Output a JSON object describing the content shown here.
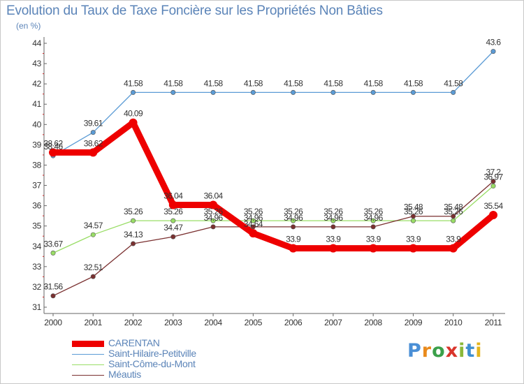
{
  "header": {
    "title": "Evolution du Taux de Taxe Foncière sur les Propriétés Non Bâties",
    "unit": "(en %)"
  },
  "chart_data": {
    "type": "line",
    "title": "Evolution du Taux de Taxe Foncière sur les Propriétés Non Bâties",
    "ylabel": "(en %)",
    "xlabel": "",
    "ylim": [
      31,
      44
    ],
    "grid": false,
    "legend": "bottom-left",
    "x": [
      "2000",
      "2001",
      "2002",
      "2003",
      "2004",
      "2005",
      "2006",
      "2007",
      "2008",
      "2009",
      "2010",
      "2011"
    ],
    "yticks": [
      "31",
      "32",
      "33",
      "34",
      "35",
      "36",
      "37",
      "38",
      "39",
      "40",
      "41",
      "42",
      "43",
      "44"
    ],
    "series": [
      {
        "name": "CARENTAN",
        "color": "#ee0000",
        "values": [
          38.62,
          38.62,
          40.09,
          36.04,
          36.04,
          34.64,
          33.9,
          33.9,
          33.9,
          33.9,
          33.9,
          35.54
        ],
        "labels": [
          "38.62",
          "38.62",
          "40.09",
          "36.04",
          "36.04",
          "34.64",
          "33.9",
          "33.9",
          "33.9",
          "33.9",
          "33.9",
          "35.54"
        ]
      },
      {
        "name": "Saint-Hilaire-Petitville",
        "color": "#5b9bd5",
        "values": [
          38.46,
          39.61,
          41.58,
          41.58,
          41.58,
          41.58,
          41.58,
          41.58,
          41.58,
          41.58,
          41.58,
          43.6
        ],
        "labels": [
          "38.46",
          "39.61",
          "41.58",
          "41.58",
          "41.58",
          "41.58",
          "41.58",
          "41.58",
          "41.58",
          "41.58",
          "41.58",
          "43.6"
        ]
      },
      {
        "name": "Saint-Côme-du-Mont",
        "color": "#99dd66",
        "values": [
          33.67,
          34.57,
          35.26,
          35.26,
          35.26,
          35.26,
          35.26,
          35.26,
          35.26,
          35.26,
          35.26,
          36.97
        ],
        "labels": [
          "33.67",
          "34.57",
          "35.26",
          "35.26",
          "35.26",
          "35.26",
          "35.26",
          "35.26",
          "35.26",
          "35.26",
          "35.26",
          "36.97"
        ]
      },
      {
        "name": "Méautis",
        "color": "#7a3030",
        "values": [
          31.56,
          32.51,
          34.13,
          34.47,
          34.96,
          34.96,
          34.96,
          34.96,
          34.96,
          35.48,
          35.48,
          37.2
        ],
        "labels": [
          "31.56",
          "32.51",
          "34.13",
          "34.47",
          "34.96",
          "34.96",
          "34.96",
          "34.96",
          "34.96",
          "35.48",
          "35.48",
          "37.2"
        ]
      }
    ]
  },
  "legend": {
    "items": [
      "CARENTAN",
      "Saint-Hilaire-Petitville",
      "Saint-Côme-du-Mont",
      "Méautis"
    ]
  },
  "logo": {
    "text": "Proxiti"
  }
}
